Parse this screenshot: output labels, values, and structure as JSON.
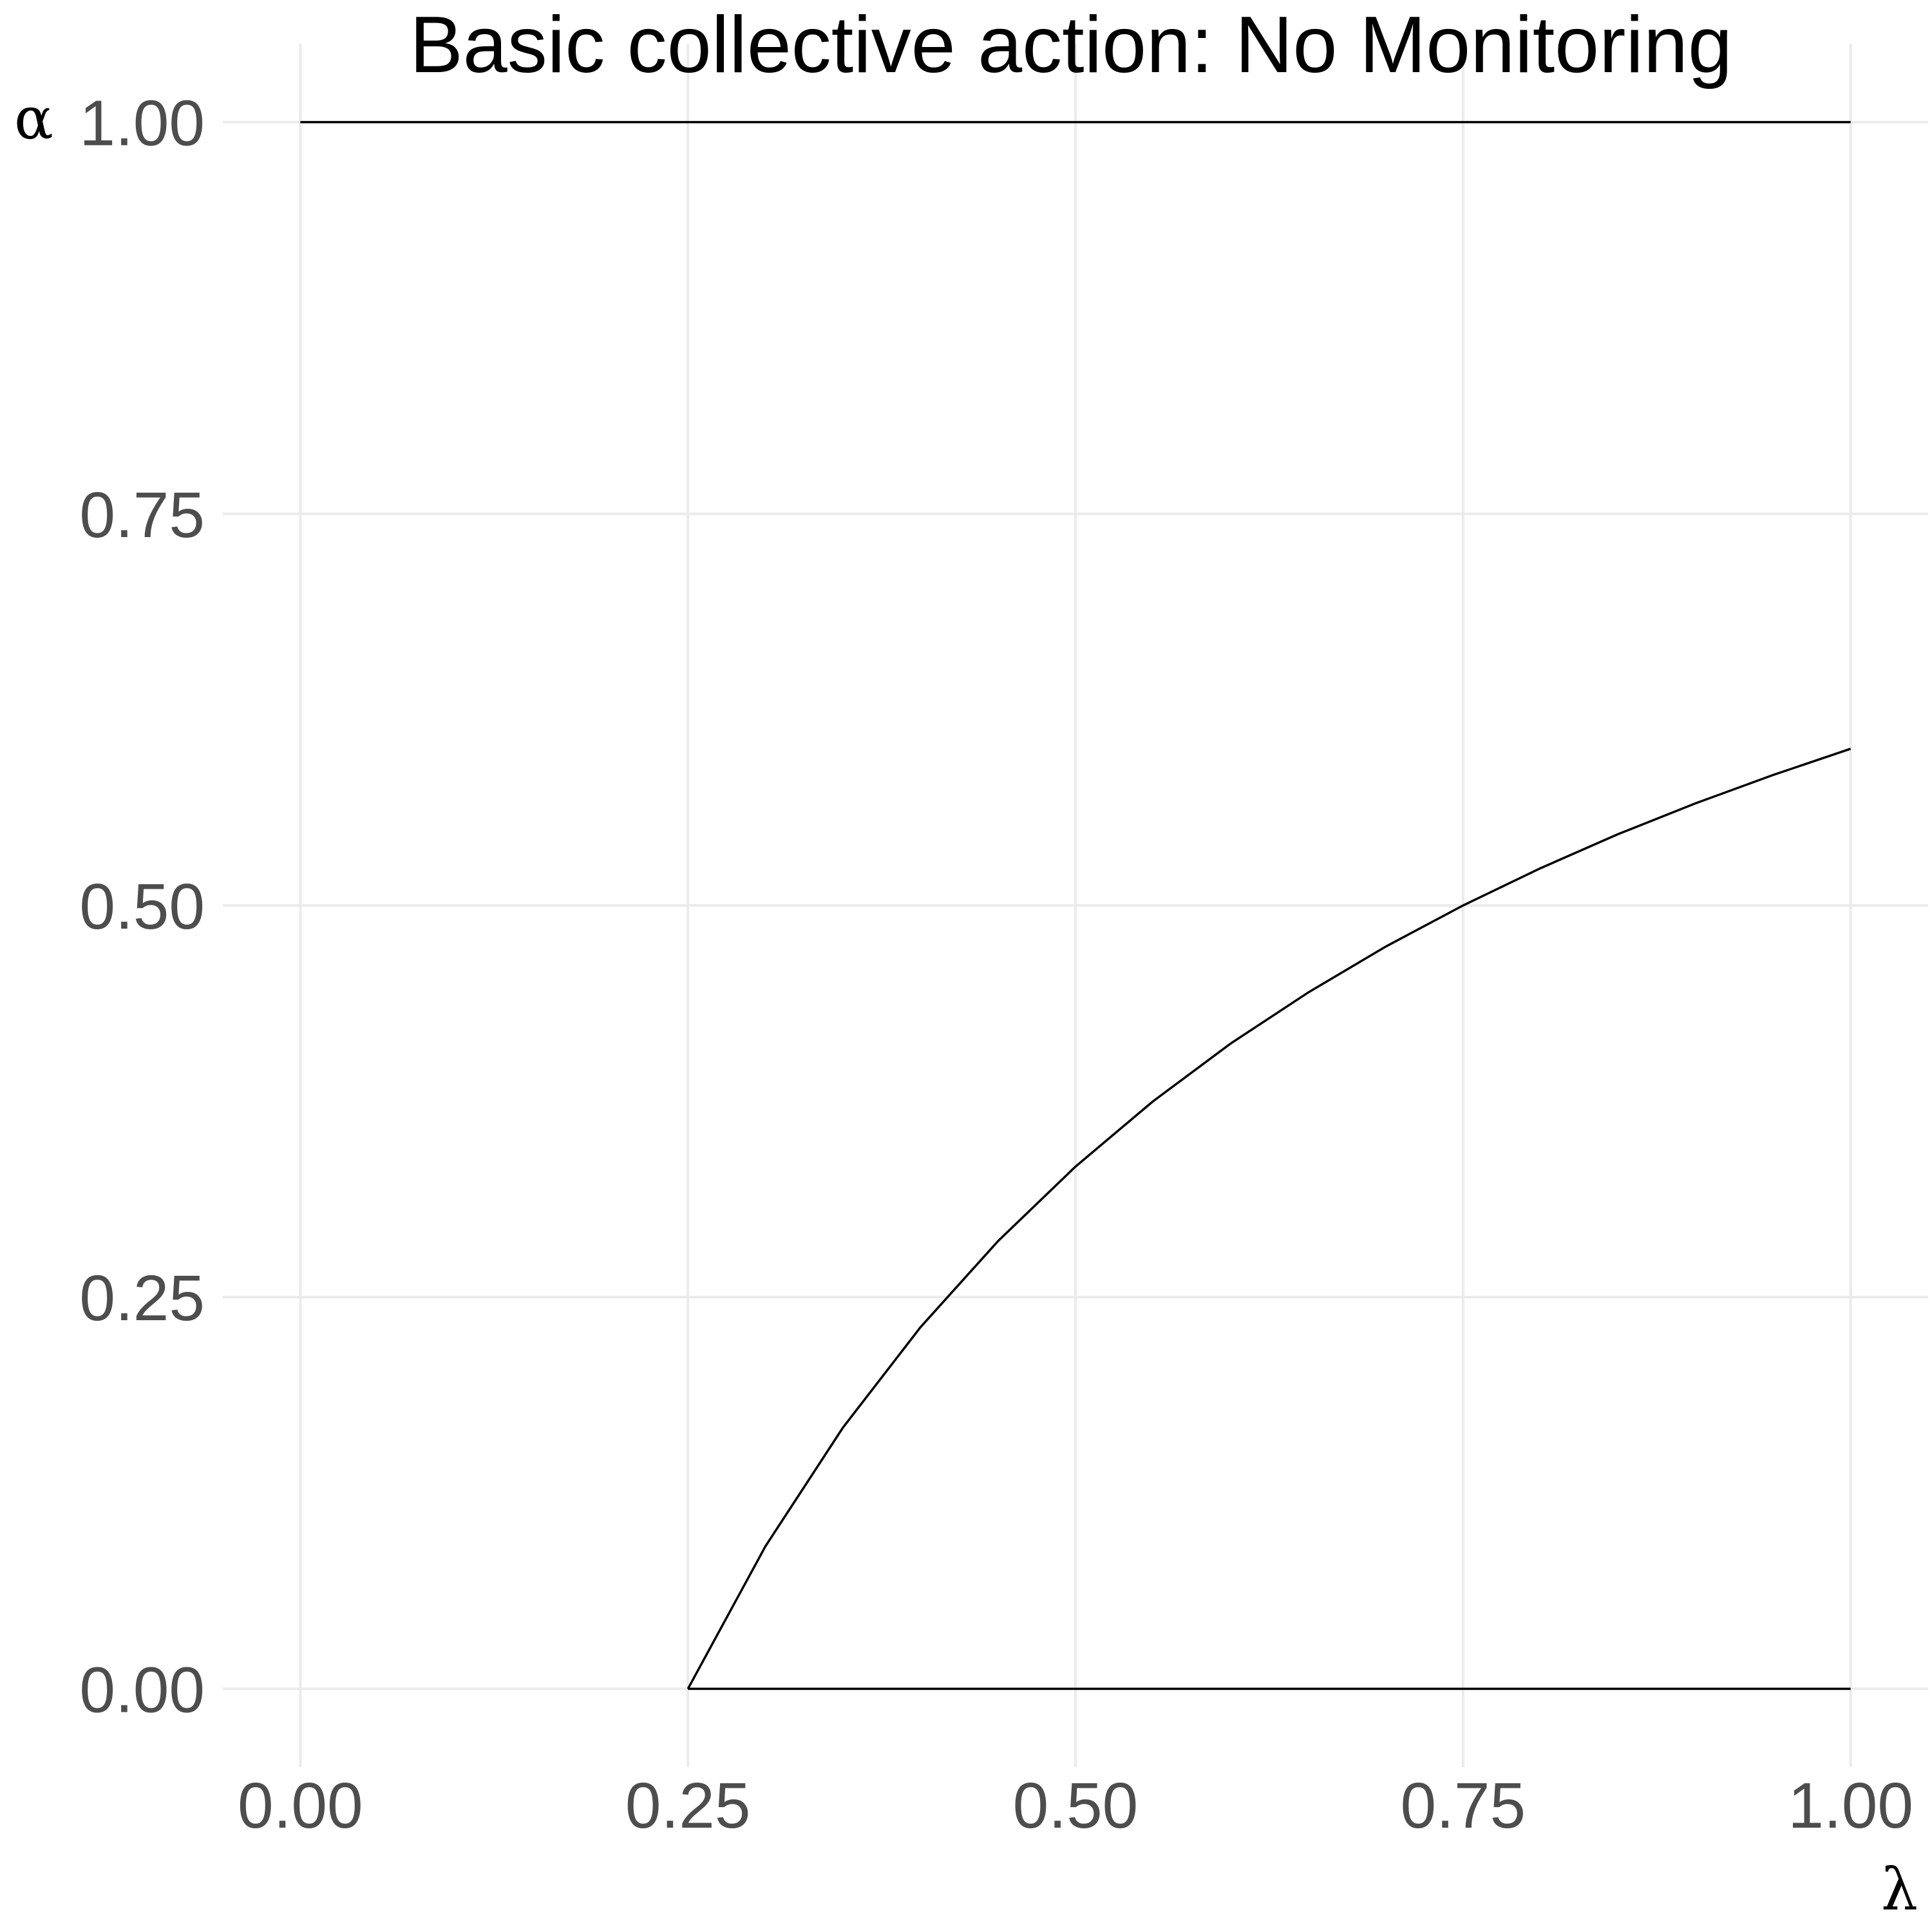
{
  "chart_data": {
    "type": "line",
    "title": "Basic collective action: No Monitoring",
    "xlabel": "λ",
    "ylabel": "α",
    "xlim": [
      -0.05,
      1.05
    ],
    "ylim": [
      -0.05,
      1.05
    ],
    "x_ticks": [
      0,
      0.25,
      0.5,
      0.75,
      1
    ],
    "x_tick_labels": [
      "0.00",
      "0.25",
      "0.50",
      "0.75",
      "1.00"
    ],
    "y_ticks": [
      0,
      0.25,
      0.5,
      0.75,
      1
    ],
    "y_tick_labels": [
      "0.00",
      "0.25",
      "0.50",
      "0.75",
      "1.00"
    ],
    "grid": true,
    "legend": "none",
    "series": [
      {
        "x": [
          0,
          1
        ],
        "y": [
          1,
          1
        ]
      },
      {
        "x": [
          0.25,
          1
        ],
        "y": [
          0,
          0
        ]
      },
      {
        "x": [
          0.25,
          0.3,
          0.35,
          0.4,
          0.45,
          0.5,
          0.55,
          0.6,
          0.65,
          0.7,
          0.75,
          0.8,
          0.85,
          0.9,
          0.95,
          1.0
        ],
        "y": [
          0,
          0.0909,
          0.1667,
          0.2308,
          0.2857,
          0.3333,
          0.375,
          0.4118,
          0.4444,
          0.4737,
          0.5,
          0.5238,
          0.5455,
          0.5652,
          0.5833,
          0.6
        ]
      }
    ],
    "colors": {
      "line": "#000000",
      "grid": "#ebebeb",
      "tick_text": "#4d4d4d"
    }
  }
}
